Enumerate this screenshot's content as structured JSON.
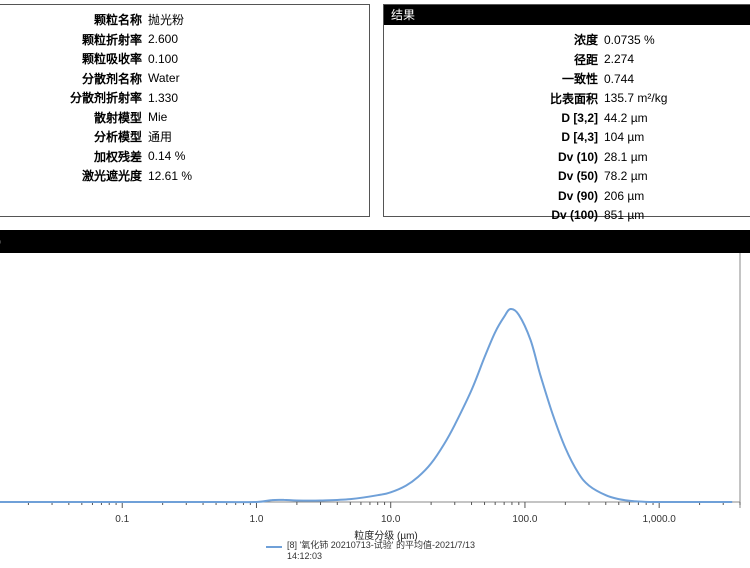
{
  "left_panel": {
    "rows": [
      {
        "label": "颗粒名称",
        "value": "抛光粉"
      },
      {
        "label": "颗粒折射率",
        "value": "2.600"
      },
      {
        "label": "颗粒吸收率",
        "value": "0.100"
      },
      {
        "label": "分散剂名称",
        "value": "Water"
      },
      {
        "label": "分散剂折射率",
        "value": "1.330"
      },
      {
        "label": "散射模型",
        "value": "Mie"
      },
      {
        "label": "分析模型",
        "value": "通用"
      },
      {
        "label": "加权残差",
        "value": "0.14 %"
      },
      {
        "label": "激光遮光度",
        "value": "12.61 %"
      }
    ]
  },
  "right_panel": {
    "title": "结果",
    "rows": [
      {
        "label": "浓度",
        "value": "0.0735 %"
      },
      {
        "label": "径距",
        "value": "2.274"
      },
      {
        "label": "一致性",
        "value": "0.744"
      },
      {
        "label": "比表面积",
        "value": "135.7 m²/kg"
      },
      {
        "label": "D [3,2]",
        "value": "44.2 µm"
      },
      {
        "label": "D [4,3]",
        "value": "104 µm"
      },
      {
        "label": "Dv (10)",
        "value": "28.1 µm"
      },
      {
        "label": "Dv (50)",
        "value": "78.2 µm"
      },
      {
        "label": "Dv (90)",
        "value": "206 µm"
      },
      {
        "label": "Dv (100)",
        "value": "851 µm"
      }
    ]
  },
  "chart_header": {
    "title": ")"
  },
  "chart_data": {
    "type": "line",
    "xscale": "log",
    "xlim": [
      0.01,
      4000
    ],
    "ylim": [
      0,
      1
    ],
    "xlabel": "粒度分级 (µm)",
    "ylabel": "",
    "tick_labels": [
      {
        "value": 0.1,
        "label": "0.1"
      },
      {
        "value": 1,
        "label": "1.0"
      },
      {
        "value": 10,
        "label": "10.0"
      },
      {
        "value": 100,
        "label": "100.0"
      },
      {
        "value": 1000,
        "label": "1,000.0"
      }
    ],
    "series": [
      {
        "name": "[8] '氧化铈 20210713-试验' 的平均值-2021/7/13 14:12:03",
        "color": "#6fa0d8",
        "x": [
          0.01,
          0.1,
          0.5,
          1.0,
          1.3,
          1.6,
          2.0,
          3.0,
          5.0,
          8.0,
          10.0,
          13.0,
          16.0,
          20.0,
          25.0,
          30.0,
          40.0,
          50.0,
          60.0,
          70.0,
          78.0,
          90.0,
          110.0,
          130.0,
          160.0,
          200.0,
          250.0,
          300.0,
          400.0,
          500.0,
          650.0,
          850.0,
          1000.0,
          3500.0
        ],
        "y": [
          0.0,
          0.0,
          0.0,
          0.0,
          0.01,
          0.011,
          0.008,
          0.008,
          0.015,
          0.035,
          0.05,
          0.085,
          0.13,
          0.2,
          0.3,
          0.4,
          0.58,
          0.75,
          0.88,
          0.96,
          1.0,
          0.97,
          0.84,
          0.66,
          0.46,
          0.28,
          0.15,
          0.085,
          0.035,
          0.015,
          0.004,
          0.0,
          0.0,
          0.0
        ]
      }
    ]
  }
}
